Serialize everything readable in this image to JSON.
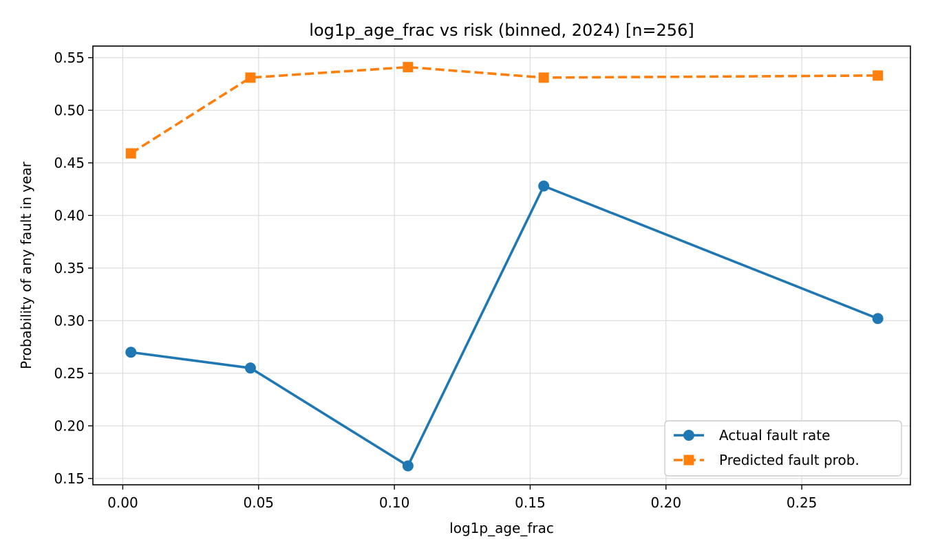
{
  "chart_data": {
    "type": "line",
    "title": "log1p_age_frac vs risk (binned, 2024)  [n=256]",
    "xlabel": "log1p_age_frac",
    "ylabel": "Probability of any fault in year",
    "xlim": [
      -0.011,
      0.29
    ],
    "ylim": [
      0.144,
      0.561
    ],
    "xticks": [
      0.0,
      0.05,
      0.1,
      0.15,
      0.2,
      0.25
    ],
    "xtick_labels": [
      "0.00",
      "0.05",
      "0.10",
      "0.15",
      "0.20",
      "0.25"
    ],
    "yticks": [
      0.15,
      0.2,
      0.25,
      0.3,
      0.35,
      0.4,
      0.45,
      0.5,
      0.55
    ],
    "ytick_labels": [
      "0.15",
      "0.20",
      "0.25",
      "0.30",
      "0.35",
      "0.40",
      "0.45",
      "0.50",
      "0.55"
    ],
    "grid": true,
    "legend_position": "lower-right",
    "series": [
      {
        "name": "Actual fault rate",
        "color": "#1f77b4",
        "marker": "circle",
        "linestyle": "solid",
        "x": [
          0.003,
          0.047,
          0.105,
          0.155,
          0.278
        ],
        "y": [
          0.27,
          0.255,
          0.162,
          0.428,
          0.302
        ]
      },
      {
        "name": "Predicted fault prob.",
        "color": "#ff7f0e",
        "marker": "square",
        "linestyle": "dashed",
        "x": [
          0.003,
          0.047,
          0.105,
          0.155,
          0.278
        ],
        "y": [
          0.459,
          0.531,
          0.541,
          0.531,
          0.533
        ]
      }
    ]
  }
}
